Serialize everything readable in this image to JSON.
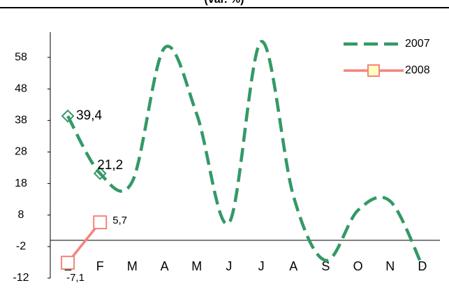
{
  "chart_data": {
    "type": "line",
    "title": "(var. %)",
    "categories": [
      "E",
      "F",
      "M",
      "A",
      "M",
      "J",
      "J",
      "A",
      "S",
      "O",
      "N",
      "D"
    ],
    "series": [
      {
        "name": "2007",
        "color": "#339966",
        "values": [
          39.4,
          21.2,
          18.6,
          61,
          40,
          5.5,
          63,
          14,
          -6.4,
          9.5,
          12.4,
          -8.2
        ],
        "value_labels": [
          "39,4",
          "21,2",
          null,
          null,
          null,
          null,
          null,
          null,
          null,
          null,
          null,
          null
        ]
      },
      {
        "name": "2008",
        "color": "#f4847c",
        "values": [
          -7.1,
          5.7,
          null,
          null,
          null,
          null,
          null,
          null,
          null,
          null,
          null,
          null
        ],
        "value_labels": [
          "-7,1",
          "5,7",
          null,
          null,
          null,
          null,
          null,
          null,
          null,
          null,
          null,
          null
        ]
      }
    ],
    "ylim": [
      -12,
      66
    ],
    "yticks": [
      -12,
      -2,
      8,
      18,
      28,
      38,
      48,
      58
    ],
    "grid": false,
    "legend": "upper right"
  }
}
